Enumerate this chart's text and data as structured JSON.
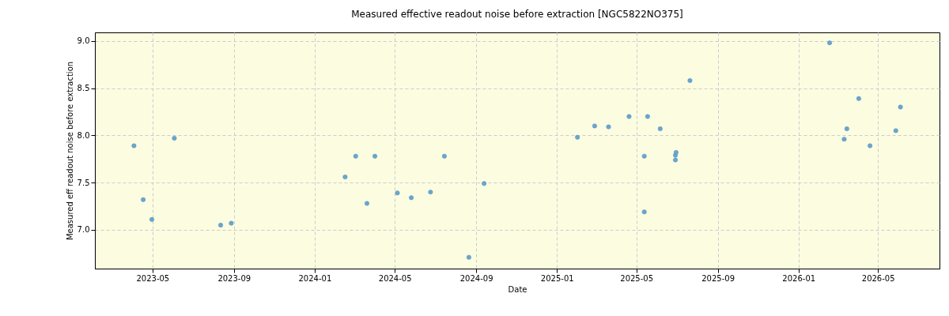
{
  "chart_data": {
    "type": "scatter",
    "title": "Measured effective readout noise before extraction [NGC5822NO375]",
    "xlabel": "Date",
    "ylabel": "Measured eff readout noise before extraction",
    "x": [
      "2023-04-03",
      "2023-04-17",
      "2023-04-30",
      "2023-06-03",
      "2023-08-12",
      "2023-08-28",
      "2024-02-16",
      "2024-03-03",
      "2024-03-20",
      "2024-04-01",
      "2024-05-05",
      "2024-05-26",
      "2024-06-24",
      "2024-07-15",
      "2024-08-21",
      "2024-09-13",
      "2025-02-01",
      "2025-02-27",
      "2025-03-20",
      "2025-04-20",
      "2025-05-13",
      "2025-05-13",
      "2025-05-18",
      "2025-06-06",
      "2025-06-29",
      "2025-06-29",
      "2025-06-30",
      "2025-07-21",
      "2026-02-17",
      "2026-03-11",
      "2026-03-15",
      "2026-04-02",
      "2026-04-19",
      "2026-05-28",
      "2026-06-04"
    ],
    "series": [
      {
        "color": "#6aa5cd",
        "values": [
          7.89,
          7.32,
          7.11,
          7.97,
          7.05,
          7.07,
          7.56,
          7.78,
          7.28,
          7.78,
          7.39,
          7.34,
          7.4,
          7.78,
          6.71,
          7.49,
          7.98,
          8.1,
          8.09,
          8.2,
          7.78,
          7.19,
          8.2,
          8.07,
          7.74,
          7.79,
          7.82,
          8.58,
          8.98,
          7.96,
          8.07,
          8.39,
          7.89,
          8.05,
          8.3
        ]
      }
    ],
    "xlim": [
      "2023-02-03",
      "2026-08-02"
    ],
    "xticks": [
      "2023-05",
      "2023-09",
      "2024-01",
      "2024-05",
      "2024-09",
      "2025-01",
      "2025-05",
      "2025-09",
      "2026-01",
      "2026-05"
    ],
    "ylim": [
      6.59,
      9.09
    ],
    "yticks": [
      {
        "value": 7.0,
        "label": "7.0"
      },
      {
        "value": 7.5,
        "label": "7.5"
      },
      {
        "value": 8.0,
        "label": "8.0"
      },
      {
        "value": 8.5,
        "label": "8.5"
      },
      {
        "value": 9.0,
        "label": "9.0"
      }
    ],
    "grid": true,
    "marker": "circle",
    "legend": false
  }
}
